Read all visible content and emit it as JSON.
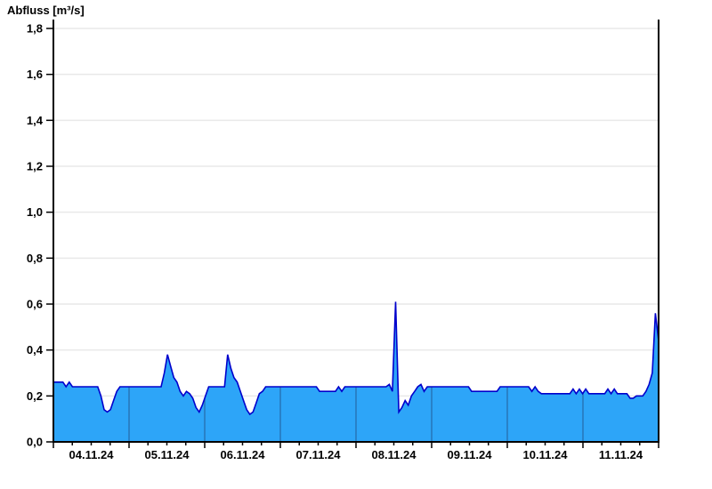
{
  "title": "Abfluss [m³/s]",
  "colors": {
    "area_fill": "#2da5f8",
    "line": "#0000cc",
    "grid": "#e9e9e9",
    "day_separator": "rgba(30,48,90,0.5)",
    "axis": "#000000",
    "end_marker": "#000000",
    "text": "#000000",
    "background": "#ffffff"
  },
  "chart_data": {
    "type": "area",
    "title": "Abfluss [m³/s]",
    "ylabel": "Abfluss [m³/s]",
    "xlabel": "",
    "ylim": [
      0,
      1.8
    ],
    "y_tick_step": 0.2,
    "y_tick_labels": [
      "0,0",
      "0,2",
      "0,4",
      "0,6",
      "0,8",
      "1,0",
      "1,2",
      "1,4",
      "1,6",
      "1,8"
    ],
    "x_day_labels": [
      "04.11.24",
      "05.11.24",
      "06.11.24",
      "07.11.24",
      "08.11.24",
      "09.11.24",
      "10.11.24",
      "11.11.24"
    ],
    "x_minor_tick_hours": 6,
    "grid": "horizontal light gridlines; vertical day-separator lines visible only inside filled area",
    "legend": "none",
    "sampling": "hourly discharge values (m³/s) per day, 04.11.24 00:00 through 11.11.24 23:00; series ends at vertical end-of-data marker",
    "series": [
      {
        "name": "Abfluss",
        "unit": "m³/s",
        "days": [
          {
            "date": "04.11.24",
            "values": [
              0.26,
              0.26,
              0.26,
              0.26,
              0.24,
              0.26,
              0.24,
              0.24,
              0.24,
              0.24,
              0.24,
              0.24,
              0.24,
              0.24,
              0.24,
              0.2,
              0.14,
              0.13,
              0.14,
              0.18,
              0.22,
              0.24,
              0.24,
              0.24
            ]
          },
          {
            "date": "05.11.24",
            "values": [
              0.24,
              0.24,
              0.24,
              0.24,
              0.24,
              0.24,
              0.24,
              0.24,
              0.24,
              0.24,
              0.24,
              0.3,
              0.38,
              0.33,
              0.28,
              0.26,
              0.22,
              0.2,
              0.22,
              0.21,
              0.19,
              0.15,
              0.13,
              0.16
            ]
          },
          {
            "date": "06.11.24",
            "values": [
              0.2,
              0.24,
              0.24,
              0.24,
              0.24,
              0.24,
              0.24,
              0.38,
              0.32,
              0.28,
              0.26,
              0.22,
              0.18,
              0.14,
              0.12,
              0.13,
              0.17,
              0.21,
              0.22,
              0.24,
              0.24,
              0.24,
              0.24,
              0.24
            ]
          },
          {
            "date": "07.11.24",
            "values": [
              0.24,
              0.24,
              0.24,
              0.24,
              0.24,
              0.24,
              0.24,
              0.24,
              0.24,
              0.24,
              0.24,
              0.24,
              0.22,
              0.22,
              0.22,
              0.22,
              0.22,
              0.22,
              0.24,
              0.22,
              0.24,
              0.24,
              0.24,
              0.24
            ]
          },
          {
            "date": "08.11.24",
            "values": [
              0.24,
              0.24,
              0.24,
              0.24,
              0.24,
              0.24,
              0.24,
              0.24,
              0.24,
              0.24,
              0.25,
              0.22,
              0.61,
              0.13,
              0.15,
              0.18,
              0.16,
              0.2,
              0.22,
              0.24,
              0.25,
              0.22,
              0.24,
              0.24
            ]
          },
          {
            "date": "09.11.24",
            "values": [
              0.24,
              0.24,
              0.24,
              0.24,
              0.24,
              0.24,
              0.24,
              0.24,
              0.24,
              0.24,
              0.24,
              0.24,
              0.22,
              0.22,
              0.22,
              0.22,
              0.22,
              0.22,
              0.22,
              0.22,
              0.22,
              0.24,
              0.24,
              0.24
            ]
          },
          {
            "date": "10.11.24",
            "values": [
              0.24,
              0.24,
              0.24,
              0.24,
              0.24,
              0.24,
              0.24,
              0.22,
              0.24,
              0.22,
              0.21,
              0.21,
              0.21,
              0.21,
              0.21,
              0.21,
              0.21,
              0.21,
              0.21,
              0.21,
              0.23,
              0.21,
              0.23,
              0.21
            ]
          },
          {
            "date": "11.11.24",
            "values": [
              0.23,
              0.21,
              0.21,
              0.21,
              0.21,
              0.21,
              0.21,
              0.23,
              0.21,
              0.23,
              0.21,
              0.21,
              0.21,
              0.21,
              0.19,
              0.19,
              0.2,
              0.2,
              0.2,
              0.22,
              0.25,
              0.3,
              0.56,
              0.44
            ]
          }
        ]
      }
    ]
  }
}
